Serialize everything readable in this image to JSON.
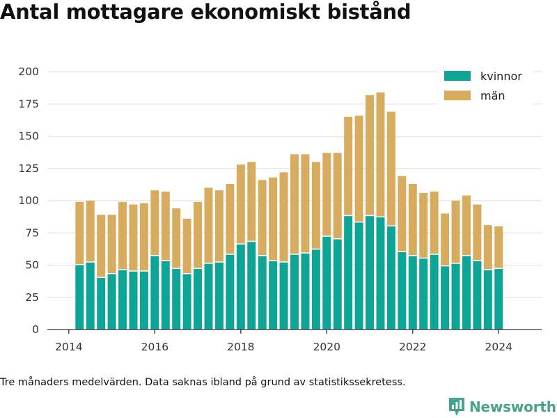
{
  "title": "Antal mottagare ekonomiskt bistånd",
  "footnote": "Tre månaders medelvärden. Data saknas ibland på grund av statistikssekretess.",
  "brand": {
    "name": "Newsworthy",
    "icon": "bar-chart-logo-icon",
    "color": "#46a38d"
  },
  "colors": {
    "kvinnor": "#0ea597",
    "man": "#d8ac5e",
    "grid": "#dddddd",
    "axis": "#333333"
  },
  "chart_data": {
    "type": "bar",
    "stacked": true,
    "title": "Antal mottagare ekonomiskt bistånd",
    "xlabel": "",
    "ylabel": "",
    "ylim": [
      0,
      200
    ],
    "yticks": [
      0,
      25,
      50,
      75,
      100,
      125,
      150,
      175,
      200
    ],
    "xticks": [
      "2014",
      "2016",
      "2018",
      "2020",
      "2022",
      "2024"
    ],
    "grid": true,
    "legend_position": "top-right",
    "x": [
      "2014-Q2",
      "2014-Q3",
      "2014-Q4",
      "2015-Q1",
      "2015-Q2",
      "2015-Q3",
      "2015-Q4",
      "2016-Q1",
      "2016-Q2",
      "2016-Q3",
      "2016-Q4",
      "2017-Q1",
      "2017-Q2",
      "2017-Q3",
      "2017-Q4",
      "2018-Q1",
      "2018-Q2",
      "2018-Q3",
      "2018-Q4",
      "2019-Q1",
      "2019-Q2",
      "2019-Q3",
      "2019-Q4",
      "2020-Q1",
      "2020-Q2",
      "2020-Q3",
      "2020-Q4",
      "2021-Q1",
      "2021-Q2",
      "2021-Q3",
      "2021-Q4",
      "2022-Q1",
      "2022-Q2",
      "2022-Q3",
      "2022-Q4",
      "2023-Q1",
      "2023-Q2",
      "2023-Q3",
      "2023-Q4",
      "2024-Q1"
    ],
    "series": [
      {
        "name": "kvinnor",
        "color": "#0ea597",
        "values": [
          50,
          52,
          40,
          43,
          46,
          45,
          45,
          57,
          53,
          47,
          43,
          47,
          51,
          52,
          58,
          66,
          68,
          57,
          53,
          52,
          58,
          59,
          62,
          72,
          70,
          88,
          83,
          88,
          87,
          80,
          60,
          57,
          55,
          58,
          49,
          51,
          57,
          53,
          46,
          47
        ]
      },
      {
        "name": "män",
        "color": "#d8ac5e",
        "values": [
          49,
          48,
          49,
          46,
          53,
          52,
          53,
          51,
          54,
          47,
          43,
          52,
          59,
          56,
          55,
          62,
          62,
          59,
          65,
          70,
          78,
          77,
          68,
          65,
          67,
          77,
          83,
          94,
          97,
          89,
          59,
          56,
          51,
          49,
          41,
          49,
          47,
          44,
          35,
          33
        ]
      }
    ]
  }
}
